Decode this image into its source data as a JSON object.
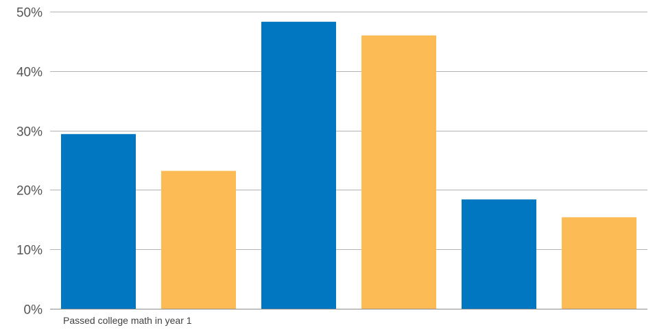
{
  "chart_data": {
    "type": "bar",
    "category_label": "Passed college math in year 1",
    "ylim": [
      0,
      50
    ],
    "y_ticks": [
      "0%",
      "10%",
      "20%",
      "30%",
      "40%",
      "50%"
    ],
    "y_tick_values": [
      0,
      10,
      20,
      30,
      40,
      50
    ],
    "grid": true,
    "legend": "none",
    "bars": [
      {
        "value": 29.4,
        "color": "#0077c0"
      },
      {
        "value": 23.2,
        "color": "#fdbb55"
      },
      {
        "value": 48.3,
        "color": "#0077c0"
      },
      {
        "value": 46.0,
        "color": "#fdbb55"
      },
      {
        "value": 18.4,
        "color": "#0077c0"
      },
      {
        "value": 15.4,
        "color": "#fdbb55"
      }
    ]
  }
}
